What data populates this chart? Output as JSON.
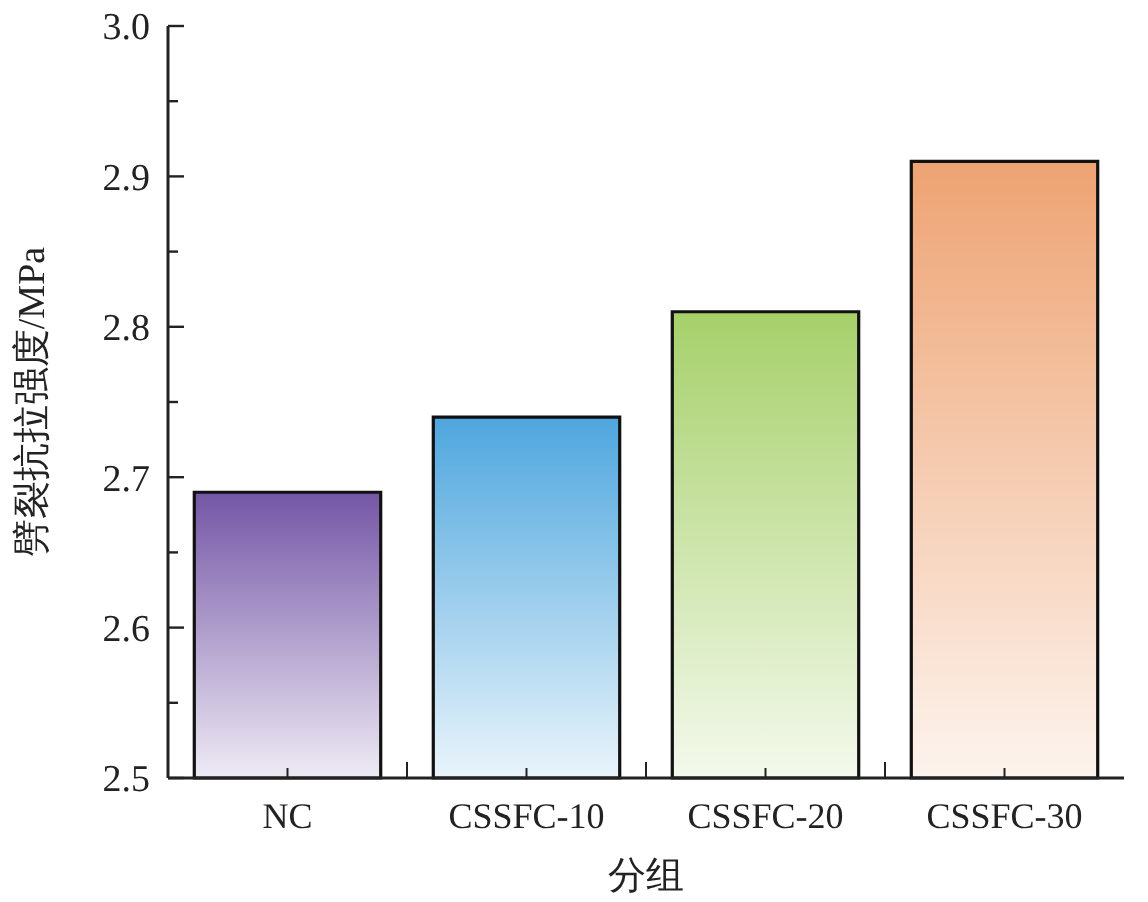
{
  "chart_data": {
    "type": "bar",
    "xlabel": "分组",
    "ylabel": "劈裂抗拉强度/MPa",
    "categories": [
      "NC",
      "CSSFC-10",
      "CSSFC-20",
      "CSSFC-30"
    ],
    "values": [
      2.69,
      2.74,
      2.81,
      2.91
    ],
    "colors": [
      "#7456a6",
      "#4ea6de",
      "#a6d06a",
      "#eea373"
    ],
    "ylim": [
      2.5,
      3.0
    ],
    "yticks": [
      2.5,
      {
        "value": 2.55,
        "label": null
      },
      2.6,
      {
        "value": 2.65,
        "label": null
      },
      2.7,
      {
        "value": 2.75,
        "label": null
      },
      2.8,
      {
        "value": 2.85,
        "label": null
      },
      2.9,
      {
        "value": 2.95,
        "label": null
      },
      {
        "value": 3.0,
        "label": "3.0"
      }
    ],
    "grid": false
  }
}
